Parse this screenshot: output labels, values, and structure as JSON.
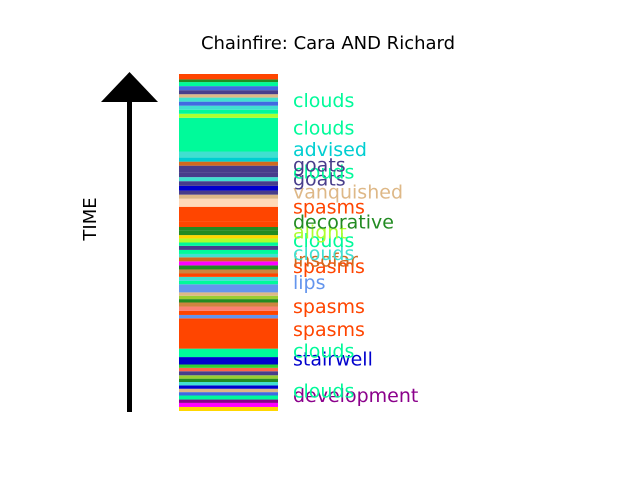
{
  "chart_data": {
    "type": "bar",
    "title": "Chainfire: Cara AND Richard",
    "ylabel": "TIME",
    "xlabel": "",
    "ylim": [
      0,
      1
    ],
    "bands": [
      {
        "start": 0.0,
        "end": 0.012,
        "color": "#FFD700"
      },
      {
        "start": 0.012,
        "end": 0.024,
        "color": "#FF00FF"
      },
      {
        "start": 0.024,
        "end": 0.034,
        "color": "#8B008B"
      },
      {
        "start": 0.034,
        "end": 0.046,
        "color": "#00FA9A"
      },
      {
        "start": 0.046,
        "end": 0.056,
        "color": "#4169E1"
      },
      {
        "start": 0.056,
        "end": 0.066,
        "color": "#DEB887"
      },
      {
        "start": 0.066,
        "end": 0.076,
        "color": "#0000CD"
      },
      {
        "start": 0.076,
        "end": 0.086,
        "color": "#40E0D0"
      },
      {
        "start": 0.086,
        "end": 0.096,
        "color": "#228B22"
      },
      {
        "start": 0.096,
        "end": 0.106,
        "color": "#9ACD32"
      },
      {
        "start": 0.106,
        "end": 0.118,
        "color": "#483D8B"
      },
      {
        "start": 0.118,
        "end": 0.128,
        "color": "#FF6347"
      },
      {
        "start": 0.128,
        "end": 0.138,
        "color": "#32CD32"
      },
      {
        "start": 0.138,
        "end": 0.16,
        "color": "#0000CD"
      },
      {
        "start": 0.16,
        "end": 0.185,
        "color": "#00FA9A"
      },
      {
        "start": 0.185,
        "end": 0.275,
        "color": "#FF4500"
      },
      {
        "start": 0.275,
        "end": 0.285,
        "color": "#6495ED"
      },
      {
        "start": 0.285,
        "end": 0.297,
        "color": "#FF4500"
      },
      {
        "start": 0.297,
        "end": 0.31,
        "color": "#FA8072"
      },
      {
        "start": 0.31,
        "end": 0.322,
        "color": "#CD853F"
      },
      {
        "start": 0.322,
        "end": 0.332,
        "color": "#228B22"
      },
      {
        "start": 0.332,
        "end": 0.342,
        "color": "#9ACD32"
      },
      {
        "start": 0.342,
        "end": 0.352,
        "color": "#DEB887"
      },
      {
        "start": 0.352,
        "end": 0.376,
        "color": "#6495ED"
      },
      {
        "start": 0.376,
        "end": 0.386,
        "color": "#00FA9A"
      },
      {
        "start": 0.386,
        "end": 0.398,
        "color": "#40E0D0"
      },
      {
        "start": 0.398,
        "end": 0.408,
        "color": "#FF4500"
      },
      {
        "start": 0.408,
        "end": 0.42,
        "color": "#CD853F"
      },
      {
        "start": 0.42,
        "end": 0.432,
        "color": "#228B22"
      },
      {
        "start": 0.432,
        "end": 0.444,
        "color": "#FF00FF"
      },
      {
        "start": 0.444,
        "end": 0.456,
        "color": "#D2691E"
      },
      {
        "start": 0.456,
        "end": 0.466,
        "color": "#40E0D0"
      },
      {
        "start": 0.466,
        "end": 0.478,
        "color": "#00FA9A"
      },
      {
        "start": 0.478,
        "end": 0.49,
        "color": "#483D8B"
      },
      {
        "start": 0.49,
        "end": 0.5,
        "color": "#00FA9A"
      },
      {
        "start": 0.5,
        "end": 0.512,
        "color": "#ADFF2F"
      },
      {
        "start": 0.512,
        "end": 0.522,
        "color": "#FFD700"
      },
      {
        "start": 0.522,
        "end": 0.536,
        "color": "#228B22"
      },
      {
        "start": 0.536,
        "end": 0.546,
        "color": "#228B22"
      },
      {
        "start": 0.546,
        "end": 0.562,
        "color": "#FF4500"
      },
      {
        "start": 0.562,
        "end": 0.606,
        "color": "#FF4500"
      },
      {
        "start": 0.606,
        "end": 0.63,
        "color": "#FFDAB9"
      },
      {
        "start": 0.63,
        "end": 0.642,
        "color": "#DEB887"
      },
      {
        "start": 0.642,
        "end": 0.654,
        "color": "#483D8B"
      },
      {
        "start": 0.654,
        "end": 0.668,
        "color": "#0000CD"
      },
      {
        "start": 0.668,
        "end": 0.682,
        "color": "#483D8B"
      },
      {
        "start": 0.682,
        "end": 0.694,
        "color": "#40E0D0"
      },
      {
        "start": 0.694,
        "end": 0.708,
        "color": "#483D8B"
      },
      {
        "start": 0.708,
        "end": 0.728,
        "color": "#483D8B"
      },
      {
        "start": 0.728,
        "end": 0.74,
        "color": "#D2691E"
      },
      {
        "start": 0.74,
        "end": 0.752,
        "color": "#00CED1"
      },
      {
        "start": 0.752,
        "end": 0.77,
        "color": "#40E0D0"
      },
      {
        "start": 0.77,
        "end": 0.87,
        "color": "#00FA9A"
      },
      {
        "start": 0.87,
        "end": 0.882,
        "color": "#ADFF2F"
      },
      {
        "start": 0.882,
        "end": 0.894,
        "color": "#00FA9A"
      },
      {
        "start": 0.894,
        "end": 0.906,
        "color": "#40E0D0"
      },
      {
        "start": 0.906,
        "end": 0.918,
        "color": "#4169E1"
      },
      {
        "start": 0.918,
        "end": 0.93,
        "color": "#40E0D0"
      },
      {
        "start": 0.93,
        "end": 0.94,
        "color": "#DEB887"
      },
      {
        "start": 0.94,
        "end": 0.952,
        "color": "#483D8B"
      },
      {
        "start": 0.952,
        "end": 0.964,
        "color": "#4169E1"
      },
      {
        "start": 0.964,
        "end": 0.976,
        "color": "#00FA9A"
      },
      {
        "start": 0.976,
        "end": 0.984,
        "color": "#228B22"
      },
      {
        "start": 0.984,
        "end": 1.0,
        "color": "#FF4500"
      }
    ],
    "labels": [
      {
        "text": "development",
        "pos": 0.044,
        "color": "#8B008B"
      },
      {
        "text": "clouds",
        "pos": 0.058,
        "color": "#00FA9A"
      },
      {
        "text": "stairwell",
        "pos": 0.153,
        "color": "#0000CD"
      },
      {
        "text": "clouds",
        "pos": 0.176,
        "color": "#00FA9A"
      },
      {
        "text": "spasms",
        "pos": 0.24,
        "color": "#FF4500"
      },
      {
        "text": "spasms",
        "pos": 0.308,
        "color": "#FF4500"
      },
      {
        "text": "lips",
        "pos": 0.38,
        "color": "#6495ED"
      },
      {
        "text": "spasms",
        "pos": 0.427,
        "color": "#FF4500"
      },
      {
        "text": "insofar",
        "pos": 0.446,
        "color": "#D2691E"
      },
      {
        "text": "clouds",
        "pos": 0.466,
        "color": "#40E0D0"
      },
      {
        "text": "clouds",
        "pos": 0.504,
        "color": "#00FA9A"
      },
      {
        "text": "alight",
        "pos": 0.53,
        "color": "#ADFF2F"
      },
      {
        "text": "decorative",
        "pos": 0.56,
        "color": "#228B22"
      },
      {
        "text": "spasms",
        "pos": 0.604,
        "color": "#FF4500"
      },
      {
        "text": "vanquished",
        "pos": 0.648,
        "color": "#DEB887"
      },
      {
        "text": "goats",
        "pos": 0.687,
        "color": "#483D8B"
      },
      {
        "text": "clouds",
        "pos": 0.708,
        "color": "#00FA9A"
      },
      {
        "text": "goats",
        "pos": 0.728,
        "color": "#483D8B"
      },
      {
        "text": "advised",
        "pos": 0.775,
        "color": "#00CED1"
      },
      {
        "text": "clouds",
        "pos": 0.838,
        "color": "#00FA9A"
      },
      {
        "text": "clouds",
        "pos": 0.92,
        "color": "#00FA9A"
      }
    ]
  }
}
